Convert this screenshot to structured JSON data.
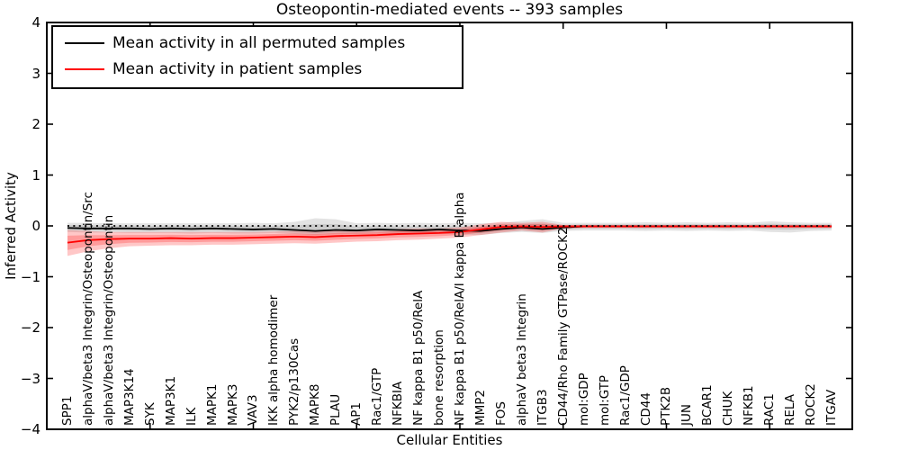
{
  "figure": {
    "title": "Osteopontin-mediated events -- 393 samples",
    "xlabel": "Cellular Entities",
    "ylabel": "Inferred Activity"
  },
  "legend": {
    "items": [
      {
        "label": "Mean activity in all permuted samples",
        "color": "#000000"
      },
      {
        "label": "Mean activity in patient samples",
        "color": "#ff0000"
      }
    ]
  },
  "chart_data": {
    "type": "line",
    "title": "Osteopontin-mediated events -- 393 samples",
    "xlabel": "Cellular Entities",
    "ylabel": "Inferred Activity",
    "ylim": [
      -4,
      4
    ],
    "yticks": [
      4,
      3,
      2,
      1,
      0,
      -1,
      -2,
      -3,
      -4
    ],
    "x_major_ticks": [
      5,
      10,
      15,
      20,
      25,
      30,
      35
    ],
    "grid": false,
    "legend_position": "upper left",
    "zero_line": {
      "y": 0,
      "style": "dotted",
      "color": "#000000"
    },
    "categories": [
      "SPP1",
      "alphaV/beta3 Integrin/Osteopontin/Src",
      "alphaV/beta3 Integrin/Osteopontin",
      "MAP3K14",
      "SYK",
      "MAP3K1",
      "ILK",
      "MAPK1",
      "MAPK3",
      "VAV3",
      "IKK alpha homodimer",
      "PYK2/p130Cas",
      "MAPK8",
      "PLAU",
      "AP1",
      "Rac1/GTP",
      "NFKBIA",
      "NF kappa B1 p50/RelA",
      "bone resorption",
      "NF kappa B1 p50/RelA/I kappa B alpha",
      "MMP2",
      "FOS",
      "alphaV beta3 Integrin",
      "ITGB3",
      "CD44/Rho Family GTPase/ROCK2",
      "mol:GDP",
      "mol:GTP",
      "Rac1/GDP",
      "CD44",
      "PTK2B",
      "JUN",
      "BCAR1",
      "CHUK",
      "NFKB1",
      "RAC1",
      "RELA",
      "ROCK2",
      "ITGAV"
    ],
    "series": [
      {
        "name": "Mean activity in all permuted samples",
        "color": "#000000",
        "line_width": 1.8,
        "values": [
          -0.04,
          -0.05,
          -0.05,
          -0.05,
          -0.06,
          -0.05,
          -0.06,
          -0.05,
          -0.06,
          -0.07,
          -0.06,
          -0.08,
          -0.1,
          -0.08,
          -0.09,
          -0.07,
          -0.08,
          -0.09,
          -0.07,
          -0.09,
          -0.1,
          -0.06,
          -0.03,
          -0.06,
          -0.03,
          -0.01,
          -0.01,
          -0.01,
          -0.01,
          -0.01,
          -0.01,
          -0.01,
          -0.01,
          -0.01,
          -0.01,
          -0.01,
          -0.01,
          -0.01
        ],
        "band": {
          "color": "#000000",
          "outer_alpha": 0.11,
          "inner_alpha": 0.1,
          "inner_scale": 0.55,
          "upper": [
            0.06,
            0.06,
            0.05,
            0.05,
            0.05,
            0.05,
            0.05,
            0.05,
            0.05,
            0.06,
            0.05,
            0.08,
            0.15,
            0.13,
            0.05,
            0.06,
            0.05,
            0.06,
            0.05,
            0.06,
            0.05,
            0.06,
            0.1,
            0.13,
            0.06,
            0.06,
            0.06,
            0.06,
            0.07,
            0.06,
            0.07,
            0.06,
            0.07,
            0.06,
            0.09,
            0.07,
            0.06,
            0.06
          ],
          "lower": [
            -0.12,
            -0.13,
            -0.13,
            -0.14,
            -0.14,
            -0.14,
            -0.15,
            -0.14,
            -0.15,
            -0.15,
            -0.14,
            -0.16,
            -0.18,
            -0.16,
            -0.16,
            -0.15,
            -0.16,
            -0.16,
            -0.15,
            -0.17,
            -0.18,
            -0.14,
            -0.12,
            -0.14,
            -0.1,
            -0.09,
            -0.09,
            -0.09,
            -0.1,
            -0.09,
            -0.1,
            -0.09,
            -0.1,
            -0.09,
            -0.12,
            -0.13,
            -0.1,
            -0.09
          ]
        }
      },
      {
        "name": "Mean activity in patient samples",
        "color": "#ff0000",
        "line_width": 1.8,
        "values": [
          -0.33,
          -0.28,
          -0.26,
          -0.25,
          -0.25,
          -0.24,
          -0.25,
          -0.24,
          -0.24,
          -0.23,
          -0.22,
          -0.21,
          -0.22,
          -0.2,
          -0.19,
          -0.18,
          -0.16,
          -0.15,
          -0.14,
          -0.12,
          -0.07,
          -0.02,
          -0.01,
          -0.02,
          -0.01,
          -0.01,
          -0.01,
          -0.01,
          -0.01,
          -0.01,
          -0.01,
          -0.01,
          -0.01,
          -0.01,
          -0.01,
          -0.01,
          -0.01,
          -0.01
        ],
        "band": {
          "color": "#ff0000",
          "outer_alpha": 0.22,
          "inner_alpha": 0.22,
          "inner_scale": 0.55,
          "upper": [
            -0.08,
            -0.1,
            -0.12,
            -0.12,
            -0.12,
            -0.12,
            -0.12,
            -0.12,
            -0.12,
            -0.12,
            -0.11,
            -0.1,
            -0.11,
            -0.09,
            -0.08,
            -0.08,
            -0.06,
            -0.05,
            -0.05,
            -0.03,
            0.03,
            0.08,
            0.06,
            0.08,
            0.02,
            0.02,
            0.02,
            0.02,
            0.02,
            0.02,
            0.02,
            0.02,
            0.02,
            0.02,
            0.02,
            0.02,
            0.02,
            0.02
          ],
          "lower": [
            -0.59,
            -0.5,
            -0.44,
            -0.4,
            -0.39,
            -0.38,
            -0.38,
            -0.37,
            -0.37,
            -0.36,
            -0.35,
            -0.34,
            -0.35,
            -0.33,
            -0.31,
            -0.3,
            -0.28,
            -0.27,
            -0.25,
            -0.23,
            -0.18,
            -0.13,
            -0.09,
            -0.13,
            -0.05,
            -0.04,
            -0.04,
            -0.04,
            -0.04,
            -0.04,
            -0.04,
            -0.04,
            -0.04,
            -0.04,
            -0.04,
            -0.04,
            -0.04,
            -0.04
          ]
        }
      }
    ]
  }
}
